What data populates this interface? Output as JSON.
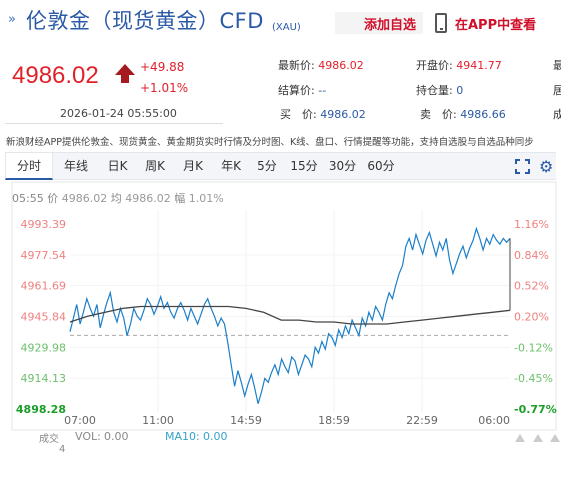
{
  "header": {
    "arrows": "»",
    "title": "伦敦金（现货黄金）CFD",
    "code": "(XAU)",
    "fav_label": "添加自选",
    "app_label": "在APP中查看"
  },
  "quote": {
    "price": "4986.02",
    "change": "+49.88",
    "change_pct": "+1.01%",
    "datetime": "2026-01-24 05:55:00",
    "fields": {
      "latest_label": "最新价:",
      "latest_value": "4986.02",
      "open_label": "开盘价:",
      "open_value": "4941.77",
      "settle_label": "结算价:",
      "settle_value": "--",
      "hold_label": "持仓量:",
      "hold_value": "0",
      "buy_label": "买　价:",
      "buy_value": "4986.02",
      "sell_label": "卖　价:",
      "sell_value": "4986.66",
      "cut1": "最",
      "cut2": "居",
      "cut3": "成"
    },
    "colors": {
      "up": "#e0212a",
      "down": "#1a9e28"
    }
  },
  "notice": "新浪财经APP提供伦敦金、现货黄金、黄金期货实时行情及分时图、K线、盘口、行情提醒等功能，支持自选股与自选品种同步",
  "tabs": [
    "分时",
    "年线",
    "日K",
    "周K",
    "月K",
    "年K",
    "5分",
    "15分",
    "30分",
    "60分"
  ],
  "active_tab": "分时",
  "chart_info": {
    "time": "05:55",
    "price_label": "价",
    "price": "4986.02",
    "avg_label": "均",
    "avg": "4986.02",
    "amp_label": "幅",
    "amp": "1.01%"
  },
  "chart_data": {
    "type": "line",
    "title": "",
    "prev_close": 4936.1,
    "ylim": [
      4898.28,
      4993.39
    ],
    "y_ticks_left": [
      "4993.39",
      "4977.54",
      "4961.69",
      "4945.84",
      "4929.98",
      "4914.13",
      "4898.28"
    ],
    "y_ticks_right": [
      "1.16%",
      "0.84%",
      "0.52%",
      "0.20%",
      "-0.12%",
      "-0.45%",
      "-0.77%"
    ],
    "x_ticks": [
      "07:00",
      "11:00",
      "14:59",
      "18:59",
      "22:59",
      "06:00"
    ],
    "series": [
      {
        "name": "价",
        "color": "#1b7fc9",
        "values": [
          4938,
          4945,
          4952,
          4942,
          4948,
          4955,
          4950,
          4946,
          4952,
          4940,
          4947,
          4953,
          4958,
          4948,
          4943,
          4950,
          4945,
          4936,
          4942,
          4950,
          4946,
          4944,
          4949,
          4955,
          4952,
          4947,
          4951,
          4956,
          4950,
          4953,
          4948,
          4945,
          4950,
          4953,
          4949,
          4944,
          4950,
          4946,
          4942,
          4947,
          4952,
          4955,
          4950,
          4946,
          4941,
          4945,
          4942,
          4932,
          4921,
          4910,
          4918,
          4912,
          4905,
          4911,
          4916,
          4909,
          4901,
          4907,
          4914,
          4912,
          4917,
          4921,
          4916,
          4924,
          4920,
          4917,
          4925,
          4923,
          4916,
          4921,
          4926,
          4924,
          4920,
          4930,
          4927,
          4933,
          4929,
          4937,
          4935,
          4931,
          4939,
          4935,
          4941,
          4937,
          4944,
          4940,
          4936,
          4945,
          4941,
          4948,
          4944,
          4951,
          4948,
          4944,
          4952,
          4958,
          4955,
          4962,
          4968,
          4972,
          4982,
          4986,
          4980,
          4988,
          4983,
          4978,
          4985,
          4989,
          4983,
          4977,
          4984,
          4980,
          4986,
          4975,
          4968,
          4973,
          4978,
          4982,
          4976,
          4981,
          4985,
          4991,
          4986,
          4980,
          4986,
          4983,
          4988,
          4985,
          4983,
          4986,
          4984,
          4986
        ]
      },
      {
        "name": "均",
        "color": "#444444",
        "values": [
          4943,
          4946,
          4948,
          4950,
          4951,
          4951,
          4951,
          4951,
          4951,
          4951,
          4950,
          4948,
          4944,
          4944,
          4943,
          4943,
          4942,
          4942,
          4942,
          4943,
          4944,
          4945,
          4946,
          4947,
          4948,
          4949
        ]
      }
    ]
  },
  "volume": {
    "side_label": "成交",
    "side_value": "4",
    "vol_label": "VOL:",
    "vol_value": "0.00",
    "ma_label": "MA10:",
    "ma_value": "0.00"
  }
}
